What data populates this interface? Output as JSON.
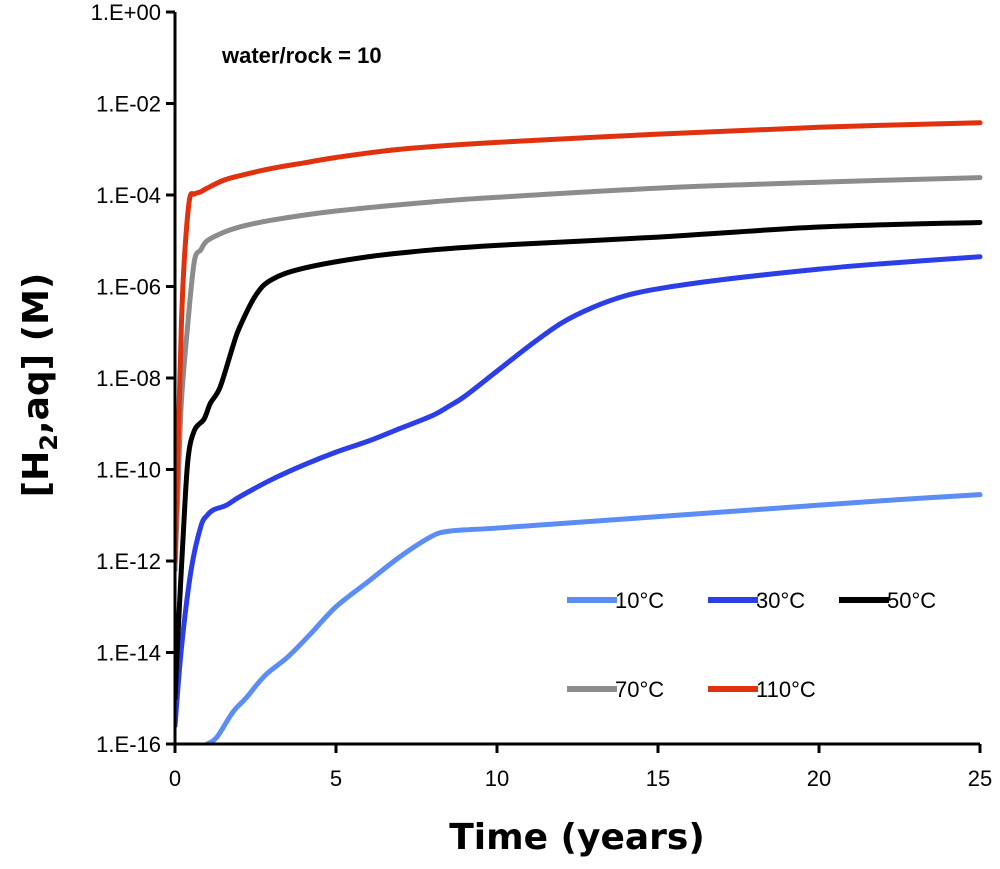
{
  "chart_data": {
    "type": "line",
    "title": "",
    "annotation": "water/rock = 10",
    "xlabel": "Time (years)",
    "ylabel": {
      "prefix": "[H",
      "subscript": "2",
      "suffix": ",aq] (M)"
    },
    "y_scale": "log",
    "xlim": [
      0,
      25
    ],
    "ylim_log10": [
      -16,
      0
    ],
    "x_ticks": [
      0,
      5,
      10,
      15,
      20,
      25
    ],
    "x_tick_labels": [
      "0",
      "5",
      "10",
      "15",
      "20",
      "25"
    ],
    "y_ticks_log10": [
      0,
      -2,
      -4,
      -6,
      -8,
      -10,
      -12,
      -14,
      -16
    ],
    "y_tick_labels": [
      "1.E+00",
      "1.E-02",
      "1.E-04",
      "1.E-06",
      "1.E-08",
      "1.E-10",
      "1.E-12",
      "1.E-14",
      "1.E-16"
    ],
    "legend_position": "bottom-right",
    "series": [
      {
        "name": "10°C",
        "color": "#5B8DF5",
        "x": [
          1.0,
          1.3,
          1.8,
          2.2,
          2.8,
          3.5,
          4.2,
          5.0,
          6.0,
          7.0,
          8.0,
          8.5,
          9.0,
          10.0,
          12.0,
          15.0,
          18.0,
          20.0,
          22.0,
          25.0
        ],
        "log10_y": [
          -16.0,
          -15.85,
          -15.3,
          -15.0,
          -14.5,
          -14.1,
          -13.6,
          -13.0,
          -12.45,
          -11.9,
          -11.45,
          -11.35,
          -11.32,
          -11.28,
          -11.18,
          -11.03,
          -10.88,
          -10.78,
          -10.68,
          -10.55
        ]
      },
      {
        "name": "30°C",
        "color": "#2B3EE8",
        "x": [
          0.0,
          0.2,
          0.5,
          0.8,
          1.0,
          1.2,
          1.6,
          2.0,
          3.0,
          4.0,
          5.0,
          6.0,
          7.0,
          8.0,
          8.5,
          9.0,
          10.0,
          11.0,
          12.0,
          13.0,
          14.0,
          15.0,
          17.0,
          20.0,
          22.0,
          25.0
        ],
        "log10_y": [
          -15.6,
          -13.9,
          -12.2,
          -11.25,
          -11.0,
          -10.88,
          -10.78,
          -10.6,
          -10.22,
          -9.9,
          -9.62,
          -9.38,
          -9.1,
          -8.82,
          -8.62,
          -8.4,
          -7.85,
          -7.3,
          -6.8,
          -6.45,
          -6.2,
          -6.05,
          -5.85,
          -5.62,
          -5.5,
          -5.35
        ]
      },
      {
        "name": "50°C",
        "color": "#000000",
        "x": [
          0.0,
          0.1,
          0.25,
          0.4,
          0.6,
          0.9,
          1.1,
          1.4,
          1.8,
          2.0,
          2.5,
          3.0,
          4.0,
          6.0,
          8.0,
          10.0,
          15.0,
          20.0,
          25.0
        ],
        "log10_y": [
          -15.0,
          -13.5,
          -11.5,
          -9.8,
          -9.15,
          -8.9,
          -8.55,
          -8.2,
          -7.3,
          -6.9,
          -6.2,
          -5.85,
          -5.6,
          -5.35,
          -5.2,
          -5.1,
          -4.92,
          -4.7,
          -4.6
        ]
      },
      {
        "name": "70°C",
        "color": "#8C8C8C",
        "x": [
          0.0,
          0.1,
          0.2,
          0.4,
          0.6,
          0.8,
          1.0,
          1.5,
          2.0,
          3.0,
          5.0,
          8.0,
          10.0,
          15.0,
          20.0,
          25.0
        ],
        "log10_y": [
          -12.2,
          -10.3,
          -8.5,
          -6.8,
          -5.45,
          -5.2,
          -5.0,
          -4.82,
          -4.7,
          -4.55,
          -4.35,
          -4.15,
          -4.05,
          -3.85,
          -3.72,
          -3.62
        ]
      },
      {
        "name": "110°C",
        "color": "#E0320E",
        "x": [
          0.0,
          0.1,
          0.2,
          0.3,
          0.45,
          0.6,
          0.8,
          1.0,
          1.5,
          2.0,
          3.0,
          4.0,
          5.0,
          7.0,
          10.0,
          15.0,
          20.0,
          25.0
        ],
        "log10_y": [
          -12.0,
          -9.4,
          -6.8,
          -5.3,
          -4.1,
          -3.98,
          -3.93,
          -3.85,
          -3.68,
          -3.58,
          -3.42,
          -3.3,
          -3.18,
          -3.0,
          -2.85,
          -2.67,
          -2.52,
          -2.42
        ]
      }
    ]
  }
}
